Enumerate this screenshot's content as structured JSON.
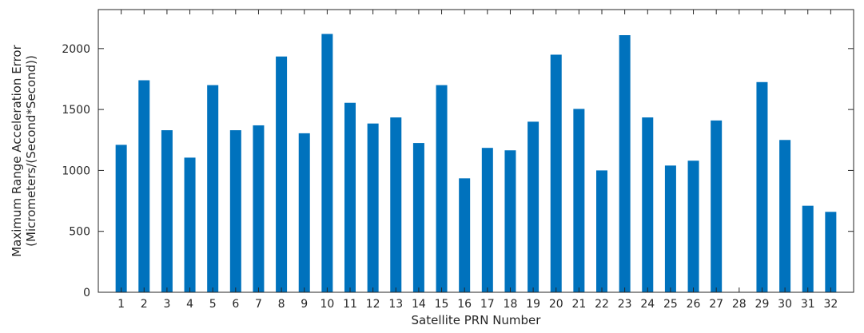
{
  "chart_data": {
    "type": "bar",
    "title": "",
    "xlabel": "Satellite PRN Number",
    "ylabel_lines": [
      "Maximum Range Acceleration Error",
      "(Micrometers/(Second*Second))"
    ],
    "categories": [
      "1",
      "2",
      "3",
      "4",
      "5",
      "6",
      "7",
      "8",
      "9",
      "10",
      "11",
      "12",
      "13",
      "14",
      "15",
      "16",
      "17",
      "18",
      "19",
      "20",
      "21",
      "22",
      "23",
      "24",
      "25",
      "26",
      "27",
      "28",
      "29",
      "30",
      "31",
      "32"
    ],
    "values": [
      1210,
      1740,
      1330,
      1105,
      1700,
      1330,
      1370,
      1935,
      1305,
      2120,
      1555,
      1385,
      1435,
      1225,
      1700,
      935,
      1185,
      1165,
      1400,
      1950,
      1505,
      1000,
      2110,
      1435,
      1040,
      1080,
      1410,
      0,
      1725,
      1250,
      710,
      660
    ],
    "ylim": [
      0,
      2320
    ],
    "yticks": [
      0,
      500,
      1000,
      1500,
      2000
    ],
    "xlim": [
      0,
      33
    ],
    "grid": false,
    "legend": "none",
    "bar_color": "#0072BD",
    "axis_color": "#262626"
  }
}
